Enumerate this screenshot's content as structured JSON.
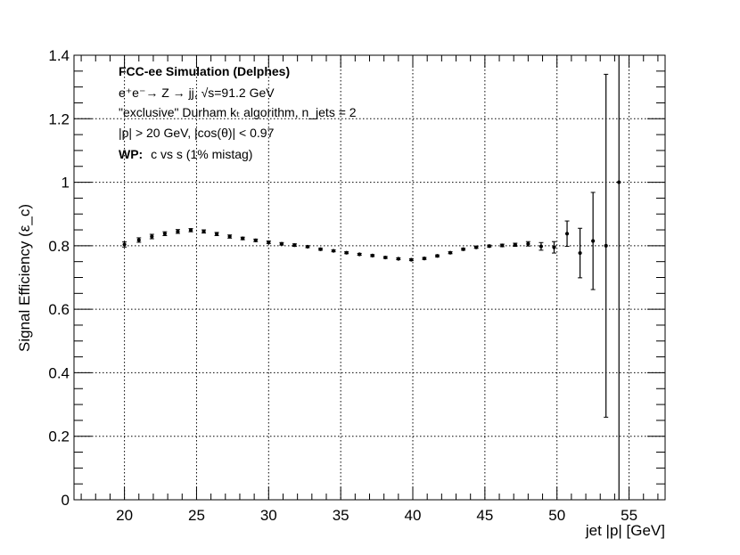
{
  "chart_data": {
    "type": "scatter",
    "ylabel": "Signal Efficiency (ε_c)",
    "xlabel": "jet |p| [GeV]",
    "xlim": [
      16.5,
      57.5
    ],
    "ylim": [
      0,
      1.4
    ],
    "grid": true,
    "x_ticks": [
      "20",
      "25",
      "30",
      "35",
      "40",
      "45",
      "50",
      "55"
    ],
    "y_ticks": [
      "0",
      "0.2",
      "0.4",
      "0.6",
      "0.8",
      "1",
      "1.2",
      "1.4"
    ],
    "annotations": {
      "line1": "FCC-ee Simulation (Delphes)",
      "line2": "e⁺e⁻→ Z → jj, √s=91.2 GeV",
      "line3": "\"exclusive\" Durham kₜ algorithm, n_jets = 2",
      "line4": "|p| > 20 GeV, |cos(θ)| < 0.97",
      "line5_bold": "WP:",
      "line5_rest": "c vs s (1% mistag)"
    },
    "series": [
      {
        "points": [
          {
            "x": 20.0,
            "y": 0.804,
            "err": 0.008
          },
          {
            "x": 21.0,
            "y": 0.818,
            "err": 0.007
          },
          {
            "x": 21.9,
            "y": 0.829,
            "err": 0.007
          },
          {
            "x": 22.8,
            "y": 0.838,
            "err": 0.006
          },
          {
            "x": 23.7,
            "y": 0.845,
            "err": 0.006
          },
          {
            "x": 24.6,
            "y": 0.849,
            "err": 0.005
          },
          {
            "x": 25.5,
            "y": 0.845,
            "err": 0.005
          },
          {
            "x": 26.4,
            "y": 0.837,
            "err": 0.005
          },
          {
            "x": 27.3,
            "y": 0.829,
            "err": 0.005
          },
          {
            "x": 28.2,
            "y": 0.823,
            "err": 0.004
          },
          {
            "x": 29.1,
            "y": 0.817,
            "err": 0.004
          },
          {
            "x": 30.0,
            "y": 0.811,
            "err": 0.004
          },
          {
            "x": 30.9,
            "y": 0.806,
            "err": 0.004
          },
          {
            "x": 31.8,
            "y": 0.802,
            "err": 0.004
          },
          {
            "x": 32.7,
            "y": 0.797,
            "err": 0.003
          },
          {
            "x": 33.6,
            "y": 0.789,
            "err": 0.003
          },
          {
            "x": 34.5,
            "y": 0.784,
            "err": 0.003
          },
          {
            "x": 35.4,
            "y": 0.778,
            "err": 0.003
          },
          {
            "x": 36.3,
            "y": 0.773,
            "err": 0.003
          },
          {
            "x": 37.2,
            "y": 0.769,
            "err": 0.003
          },
          {
            "x": 38.1,
            "y": 0.763,
            "err": 0.003
          },
          {
            "x": 39.0,
            "y": 0.759,
            "err": 0.003
          },
          {
            "x": 39.9,
            "y": 0.756,
            "err": 0.003
          },
          {
            "x": 40.8,
            "y": 0.76,
            "err": 0.003
          },
          {
            "x": 41.7,
            "y": 0.768,
            "err": 0.003
          },
          {
            "x": 42.6,
            "y": 0.778,
            "err": 0.003
          },
          {
            "x": 43.5,
            "y": 0.789,
            "err": 0.003
          },
          {
            "x": 44.4,
            "y": 0.795,
            "err": 0.003
          },
          {
            "x": 45.3,
            "y": 0.799,
            "err": 0.003
          },
          {
            "x": 46.2,
            "y": 0.801,
            "err": 0.004
          },
          {
            "x": 47.1,
            "y": 0.803,
            "err": 0.005
          },
          {
            "x": 48.0,
            "y": 0.806,
            "err": 0.007
          },
          {
            "x": 48.9,
            "y": 0.798,
            "err": 0.012
          },
          {
            "x": 49.8,
            "y": 0.795,
            "err": 0.018
          },
          {
            "x": 50.7,
            "y": 0.838,
            "err": 0.04
          },
          {
            "x": 51.6,
            "y": 0.777,
            "err": 0.078
          },
          {
            "x": 52.5,
            "y": 0.815,
            "err": 0.153
          },
          {
            "x": 53.4,
            "y": 0.8,
            "err": 0.54
          },
          {
            "x": 54.3,
            "y": 1.0,
            "err": 1.0
          }
        ]
      }
    ]
  }
}
